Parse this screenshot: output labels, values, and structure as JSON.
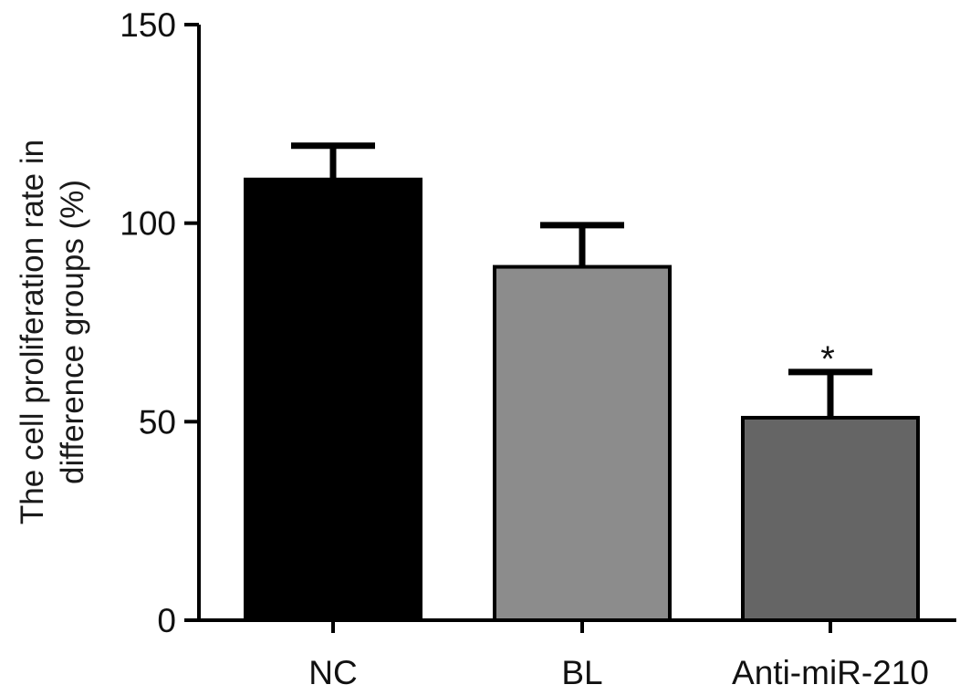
{
  "chart_data": {
    "type": "bar",
    "categories": [
      "NC",
      "BL",
      "Anti-miR-210"
    ],
    "values": [
      111,
      89,
      51
    ],
    "errors": [
      8.5,
      10.5,
      11.5
    ],
    "colors": [
      "#000000",
      "#8c8c8c",
      "#656565"
    ],
    "annotations": [
      "",
      "",
      "*"
    ],
    "ylabel_line1": "The cell proliferation rate in",
    "ylabel_line2": "difference groups (%)",
    "ylim": [
      0,
      150
    ],
    "yticks": [
      0,
      50,
      100,
      150
    ],
    "grid": false
  }
}
